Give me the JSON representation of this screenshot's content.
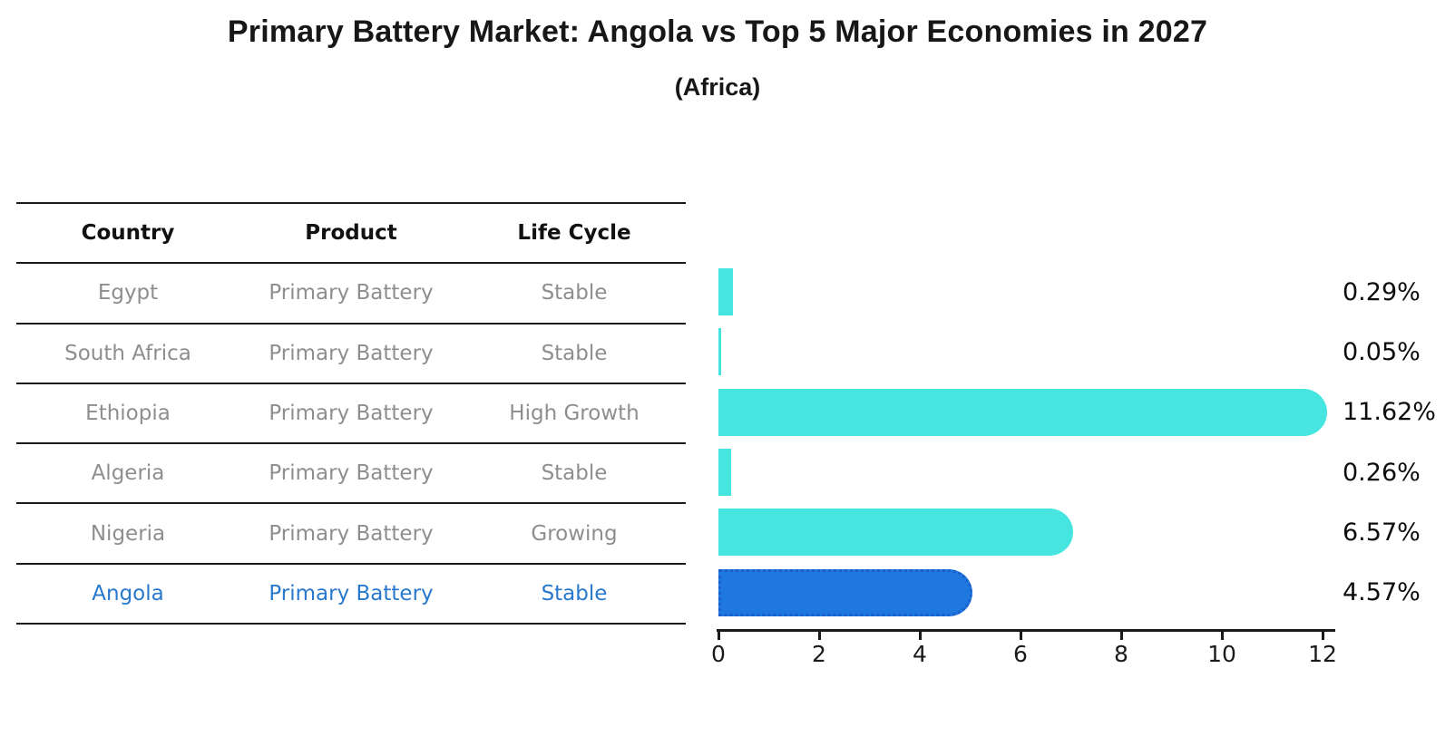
{
  "title": "Primary Battery Market: Angola vs Top 5 Major Economies in 2027",
  "subtitle": "(Africa)",
  "table": {
    "headers": [
      "Country",
      "Product",
      "Life Cycle"
    ]
  },
  "chart_data": {
    "type": "bar",
    "orientation": "horizontal",
    "unit": "%",
    "title": "Primary Battery Market: Angola vs Top 5 Major Economies in 2027",
    "xlabel": "",
    "ylabel": "",
    "xlim": [
      0,
      12
    ],
    "x_ticks": [
      0,
      2,
      4,
      6,
      8,
      10,
      12
    ],
    "grid": false,
    "legend": "none",
    "colors": {
      "bar": "#47e5df",
      "highlight_bar": "#1e78e0",
      "highlight_border": "#1a5fc8",
      "row_text": "#8e8e8e",
      "highlight_text": "#2878cd",
      "axis": "#1a1a1a"
    },
    "rows": [
      {
        "country": "Egypt",
        "product": "Primary Battery",
        "life_cycle": "Stable",
        "value": 0.29,
        "label": "0.29%",
        "highlight": false
      },
      {
        "country": "South Africa",
        "product": "Primary Battery",
        "life_cycle": "Stable",
        "value": 0.05,
        "label": "0.05%",
        "highlight": false
      },
      {
        "country": "Ethiopia",
        "product": "Primary Battery",
        "life_cycle": "High Growth",
        "value": 11.62,
        "label": "11.62%",
        "highlight": false
      },
      {
        "country": "Algeria",
        "product": "Primary Battery",
        "life_cycle": "Stable",
        "value": 0.26,
        "label": "0.26%",
        "highlight": false
      },
      {
        "country": "Nigeria",
        "product": "Primary Battery",
        "life_cycle": "Growing",
        "value": 6.57,
        "label": "6.57%",
        "highlight": false
      },
      {
        "country": "Angola",
        "product": "Primary Battery",
        "life_cycle": "Stable",
        "value": 4.57,
        "label": "4.57%",
        "highlight": true
      }
    ]
  }
}
